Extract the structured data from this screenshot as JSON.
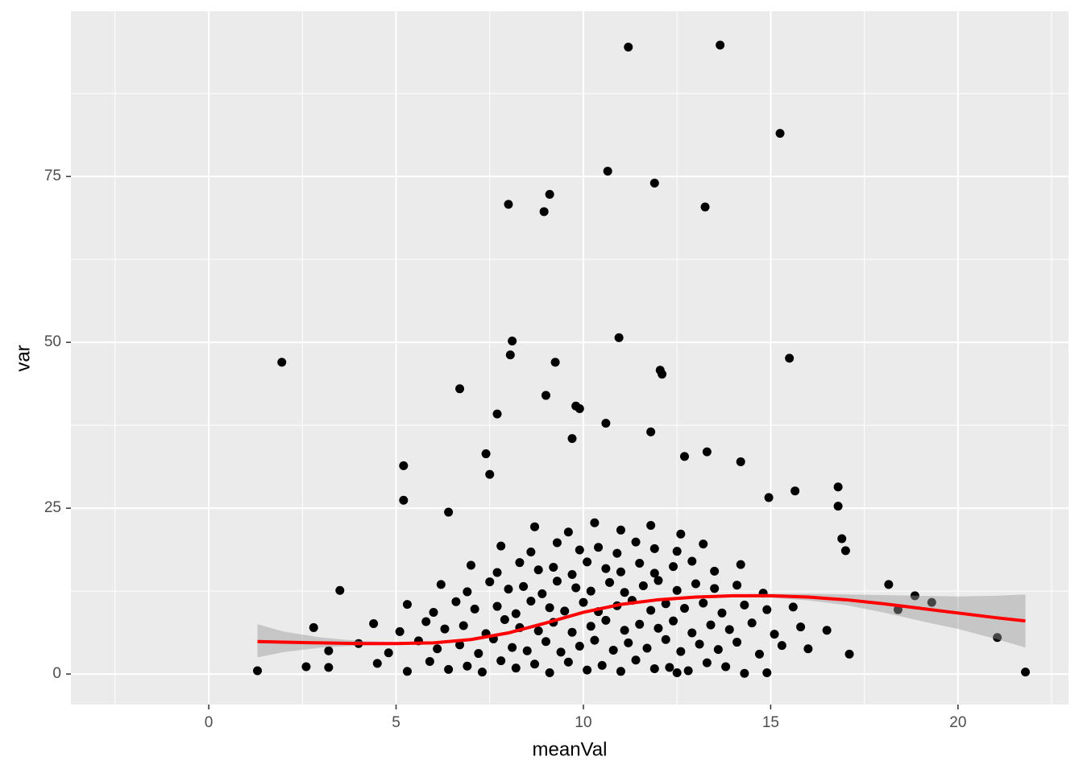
{
  "chart_data": {
    "type": "scatter",
    "x_label": "meanVal",
    "y_label": "var",
    "xlim": [
      -3.68,
      22.95
    ],
    "ylim": [
      -4.6,
      99.9
    ],
    "xticks": [
      0,
      5,
      10,
      15,
      20
    ],
    "yticks": [
      0,
      25,
      50,
      75
    ],
    "minor_xticks": [
      -2.5,
      2.5,
      7.5,
      12.5,
      17.5,
      22.5
    ],
    "minor_yticks": [
      12.5,
      37.5,
      62.5,
      87.5
    ],
    "grid": true,
    "series": [
      {
        "type": "scatter",
        "color": "#000000",
        "x": [
          1.3,
          1.95,
          2.6,
          2.8,
          11.2,
          13.65,
          15.25,
          10.65,
          11.9,
          8.0,
          9.1,
          8.95,
          13.25,
          8.1,
          8.05,
          10.95,
          9.25,
          12.05,
          12.1,
          15.5,
          6.7,
          9.0,
          9.8,
          9.9,
          7.7,
          21.8,
          21.05,
          19.3,
          18.85,
          18.15,
          18.4,
          17.1,
          16.8,
          16.8,
          15.65,
          5.2,
          5.2,
          7.4,
          14.2,
          13.3,
          16.9,
          17.0,
          14.95,
          14.3,
          14.9,
          12.5,
          3.2,
          3.5,
          3.2,
          9.7,
          10.6,
          11.8,
          12.7,
          6.4,
          7.5,
          4.5,
          5.3,
          5.9,
          6.4,
          6.9,
          7.3,
          7.8,
          8.2,
          8.7,
          9.1,
          9.6,
          10.1,
          10.5,
          11.0,
          11.4,
          11.9,
          12.3,
          12.8,
          13.3,
          13.8,
          4.0,
          4.8,
          5.6,
          6.1,
          6.7,
          7.2,
          7.6,
          8.1,
          8.5,
          9.0,
          9.4,
          9.9,
          10.3,
          10.8,
          11.2,
          11.7,
          12.2,
          12.6,
          13.1,
          13.6,
          14.1,
          14.7,
          15.3,
          16.0,
          4.4,
          5.1,
          5.8,
          6.3,
          6.8,
          7.4,
          7.9,
          8.3,
          8.8,
          9.2,
          9.7,
          10.2,
          10.6,
          11.1,
          11.5,
          12.0,
          12.4,
          12.9,
          13.4,
          13.9,
          14.5,
          15.1,
          15.8,
          16.5,
          5.3,
          6.0,
          6.6,
          7.1,
          7.7,
          8.2,
          8.6,
          9.1,
          9.5,
          10.0,
          10.4,
          10.9,
          11.3,
          11.8,
          12.2,
          12.7,
          13.2,
          13.7,
          14.3,
          14.9,
          15.6,
          6.2,
          6.9,
          7.5,
          8.0,
          8.4,
          8.9,
          9.3,
          9.8,
          10.2,
          10.7,
          11.1,
          11.6,
          12.0,
          12.5,
          13.0,
          13.5,
          14.1,
          14.8,
          7.0,
          7.7,
          8.3,
          8.8,
          9.2,
          9.7,
          10.1,
          10.6,
          11.0,
          11.5,
          11.9,
          12.4,
          12.9,
          13.5,
          14.2,
          7.8,
          8.6,
          9.3,
          9.9,
          10.4,
          10.9,
          11.4,
          11.9,
          12.5,
          13.2,
          8.7,
          9.6,
          10.3,
          11.0,
          11.8,
          12.6
        ],
        "y": [
          0.5,
          47,
          1.1,
          7,
          94.5,
          94.8,
          81.5,
          75.8,
          74,
          70.8,
          72.3,
          69.7,
          70.4,
          50.2,
          48.1,
          50.7,
          47,
          45.8,
          45.2,
          47.6,
          43,
          42,
          40.4,
          40,
          39.2,
          0.3,
          5.5,
          10.8,
          11.8,
          13.5,
          9.7,
          3,
          28.2,
          25.3,
          27.6,
          31.4,
          26.2,
          33.2,
          32,
          33.5,
          20.4,
          18.6,
          26.6,
          0.1,
          0.2,
          0.2,
          1,
          12.6,
          3.5,
          35.5,
          37.8,
          36.5,
          32.8,
          24.4,
          30.1,
          1.6,
          0.4,
          1.9,
          0.7,
          1.2,
          0.3,
          2.0,
          0.9,
          1.5,
          0.2,
          1.8,
          0.6,
          1.3,
          0.4,
          2.1,
          0.8,
          1.0,
          0.5,
          1.7,
          1.1,
          4.6,
          3.2,
          5.0,
          3.8,
          4.4,
          3.1,
          5.3,
          4.0,
          3.5,
          4.9,
          3.3,
          4.2,
          5.1,
          3.6,
          4.7,
          3.9,
          5.2,
          3.4,
          4.5,
          3.7,
          4.8,
          3.0,
          4.3,
          3.8,
          7.6,
          6.4,
          7.9,
          6.8,
          7.3,
          6.1,
          8.2,
          7.0,
          6.5,
          7.8,
          6.3,
          7.2,
          8.1,
          6.6,
          7.5,
          6.9,
          8.0,
          6.2,
          7.4,
          6.7,
          7.7,
          6.0,
          7.1,
          6.6,
          10.5,
          9.3,
          10.9,
          9.8,
          10.2,
          9.1,
          11.0,
          10.0,
          9.5,
          10.8,
          9.4,
          10.3,
          11.1,
          9.6,
          10.6,
          9.9,
          10.7,
          9.2,
          10.4,
          9.7,
          10.1,
          13.5,
          12.4,
          13.9,
          12.8,
          13.2,
          12.1,
          14.0,
          13.0,
          12.5,
          13.8,
          12.3,
          13.3,
          14.1,
          12.6,
          13.6,
          12.9,
          13.4,
          12.2,
          16.4,
          15.3,
          16.8,
          15.7,
          16.1,
          15.0,
          16.9,
          15.9,
          15.4,
          16.7,
          15.2,
          16.2,
          17.0,
          15.5,
          16.5,
          19.3,
          18.4,
          19.8,
          18.7,
          19.1,
          18.2,
          19.9,
          18.9,
          18.5,
          19.6,
          22.2,
          21.4,
          22.8,
          21.7,
          22.4,
          21.1
        ]
      },
      {
        "type": "line",
        "color": "#ff0000",
        "band_color": "#999999",
        "x": [
          1.3,
          2,
          3,
          4,
          5,
          6,
          7,
          8,
          9,
          10,
          11,
          12,
          13,
          14,
          15,
          16,
          17,
          18,
          19,
          20,
          21,
          21.8
        ],
        "y": [
          4.9,
          4.8,
          4.7,
          4.6,
          4.6,
          4.7,
          5.2,
          6.2,
          7.7,
          9.3,
          10.5,
          11.2,
          11.6,
          11.8,
          11.8,
          11.6,
          11.2,
          10.6,
          9.9,
          9.2,
          8.5,
          8.0
        ],
        "lower": [
          2.5,
          3.3,
          4.0,
          4.3,
          4.4,
          4.5,
          5.0,
          6.0,
          7.5,
          9.1,
          10.3,
          11.0,
          11.4,
          11.6,
          11.5,
          11.1,
          10.4,
          9.3,
          8.0,
          6.8,
          5.3,
          4.0
        ],
        "upper": [
          7.5,
          6.4,
          5.5,
          5.0,
          4.8,
          4.9,
          5.4,
          6.4,
          7.9,
          9.5,
          10.7,
          11.4,
          11.8,
          12.0,
          12.1,
          12.1,
          12.0,
          11.9,
          11.8,
          11.7,
          11.8,
          12.0
        ]
      }
    ]
  }
}
